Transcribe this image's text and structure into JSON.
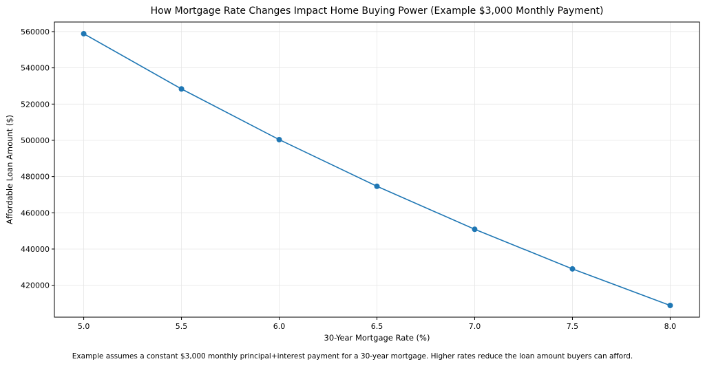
{
  "chart_data": {
    "type": "line",
    "title": "How Mortgage Rate Changes Impact Home Buying Power (Example $3,000 Monthly Payment)",
    "xlabel": "30-Year Mortgage Rate (%)",
    "ylabel": "Affordable Loan Amount ($)",
    "footnote": "Example assumes a constant $3,000 monthly principal+interest payment for a 30-year mortgage. Higher rates reduce the loan amount buyers can afford.",
    "x": [
      5.0,
      5.5,
      6.0,
      6.5,
      7.0,
      7.5,
      8.0
    ],
    "series": [
      {
        "values": [
          558830,
          528370,
          500380,
          474630,
          450910,
          429040,
          408850
        ]
      }
    ],
    "xlim": [
      4.85,
      8.15
    ],
    "ylim": [
      402400,
      565300
    ],
    "xticks": [
      5.0,
      5.5,
      6.0,
      6.5,
      7.0,
      7.5,
      8.0
    ],
    "xtick_labels": [
      "5.0",
      "5.5",
      "6.0",
      "6.5",
      "7.0",
      "7.5",
      "8.0"
    ],
    "yticks": [
      420000,
      440000,
      460000,
      480000,
      500000,
      520000,
      540000,
      560000
    ],
    "ytick_labels": [
      "420000",
      "440000",
      "460000",
      "480000",
      "500000",
      "520000",
      "540000",
      "560000"
    ],
    "grid": true,
    "colors": {
      "line": "#1f77b4",
      "grid": "#e6e6e6",
      "axis": "#000000"
    }
  }
}
